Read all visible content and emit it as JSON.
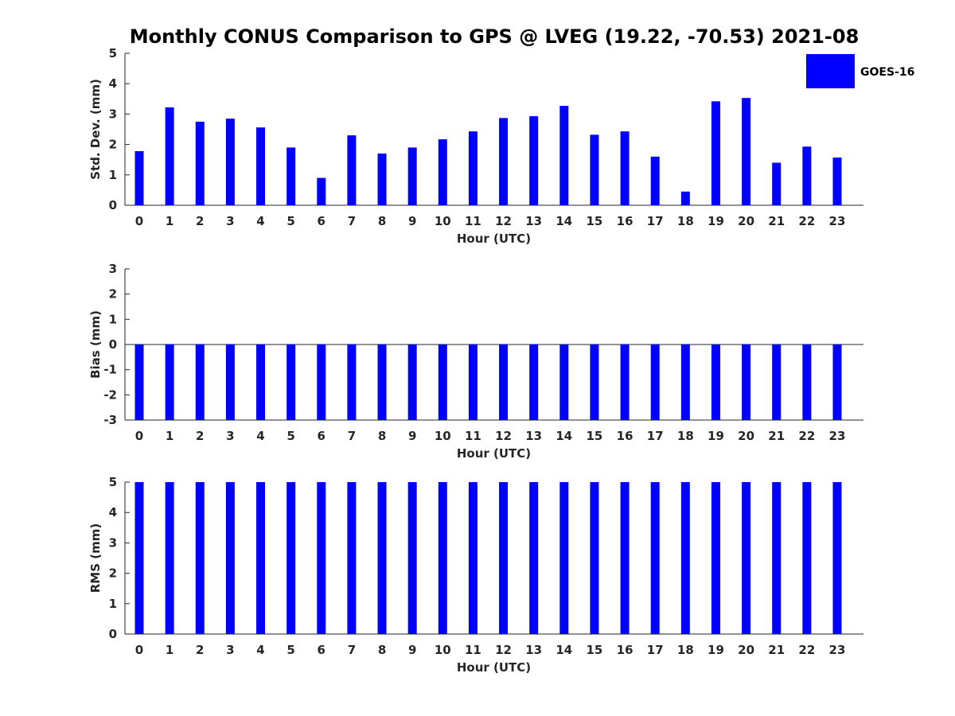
{
  "figure": {
    "title": "Monthly CONUS Comparison to GPS @ LVEG (19.22, -70.53) 2021-08",
    "bar_color": "#0000ff",
    "legend": {
      "label": "GOES-16",
      "placement": "top-right"
    }
  },
  "chart_data": [
    {
      "type": "bar",
      "title": "Monthly CONUS Comparison to GPS @ LVEG (19.22, -70.53) 2021-08",
      "xlabel": "Hour (UTC)",
      "ylabel": "Std. Dev. (mm)",
      "categories": [
        "0",
        "1",
        "2",
        "3",
        "4",
        "5",
        "6",
        "7",
        "8",
        "9",
        "10",
        "11",
        "12",
        "13",
        "14",
        "15",
        "16",
        "17",
        "18",
        "19",
        "20",
        "21",
        "22",
        "23"
      ],
      "series": [
        {
          "name": "GOES-16",
          "values": [
            1.78,
            3.22,
            2.75,
            2.85,
            2.56,
            1.9,
            0.9,
            2.3,
            1.7,
            1.9,
            2.17,
            2.43,
            2.87,
            2.93,
            3.27,
            2.32,
            2.43,
            1.6,
            0.45,
            3.42,
            3.53,
            1.4,
            1.93,
            1.57
          ]
        }
      ],
      "ylim": [
        0,
        5
      ],
      "yticks": [
        "0",
        "1",
        "2",
        "3",
        "4",
        "5"
      ],
      "grid": false
    },
    {
      "type": "bar",
      "xlabel": "Hour (UTC)",
      "ylabel": "Bias (mm)",
      "categories": [
        "0",
        "1",
        "2",
        "3",
        "4",
        "5",
        "6",
        "7",
        "8",
        "9",
        "10",
        "11",
        "12",
        "13",
        "14",
        "15",
        "16",
        "17",
        "18",
        "19",
        "20",
        "21",
        "22",
        "23"
      ],
      "series": [
        {
          "name": "GOES-16",
          "values": [
            -3,
            -3,
            -3,
            -3,
            -3,
            -3,
            -3,
            -3,
            -3,
            -3,
            -3,
            -3,
            -3,
            -3,
            -3,
            -3,
            -3,
            -3,
            -3,
            -3,
            -3,
            -3,
            -3,
            -3
          ]
        }
      ],
      "ylim": [
        -3,
        3
      ],
      "yticks": [
        "-3",
        "-2",
        "-1",
        "0",
        "1",
        "2",
        "3"
      ],
      "grid": false
    },
    {
      "type": "bar",
      "xlabel": "Hour (UTC)",
      "ylabel": "RMS (mm)",
      "categories": [
        "0",
        "1",
        "2",
        "3",
        "4",
        "5",
        "6",
        "7",
        "8",
        "9",
        "10",
        "11",
        "12",
        "13",
        "14",
        "15",
        "16",
        "17",
        "18",
        "19",
        "20",
        "21",
        "22",
        "23"
      ],
      "series": [
        {
          "name": "GOES-16",
          "values": [
            5,
            5,
            5,
            5,
            5,
            5,
            5,
            5,
            5,
            5,
            5,
            5,
            5,
            5,
            5,
            5,
            5,
            5,
            5,
            5,
            5,
            5,
            5,
            5
          ]
        }
      ],
      "ylim": [
        0,
        5
      ],
      "yticks": [
        "0",
        "1",
        "2",
        "3",
        "4",
        "5"
      ],
      "grid": false
    }
  ]
}
